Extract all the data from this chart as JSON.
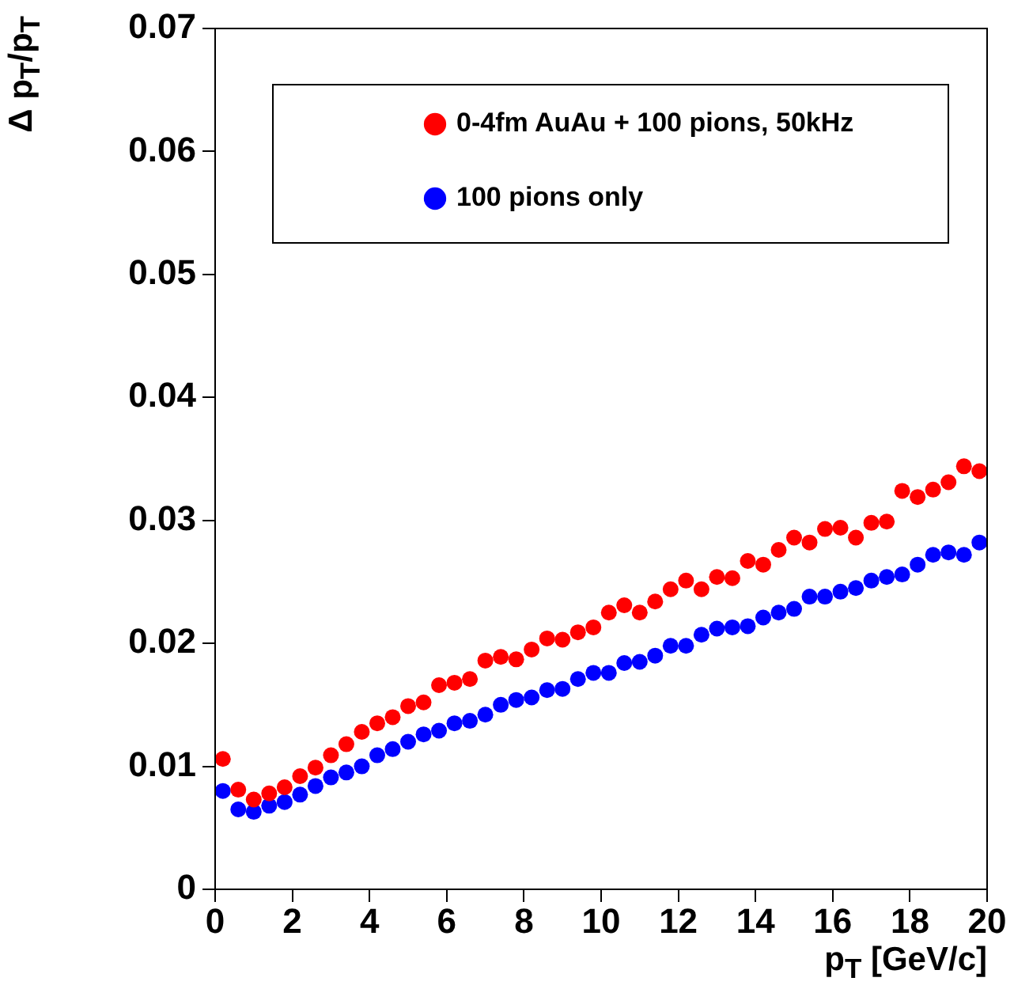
{
  "chart_data": {
    "type": "scatter",
    "xlabel": "p$_{T}$ [GeV/c]",
    "ylabel": "Δ p$_{T}$/p$_{T}$",
    "x": [
      0.2,
      0.6,
      1.0,
      1.4,
      1.8,
      2.2,
      2.6,
      3.0,
      3.4,
      3.8,
      4.2,
      4.6,
      5.0,
      5.4,
      5.8,
      6.2,
      6.6,
      7.0,
      7.4,
      7.8,
      8.2,
      8.6,
      9.0,
      9.4,
      9.8,
      10.2,
      10.6,
      11.0,
      11.4,
      11.8,
      12.2,
      12.6,
      13.0,
      13.4,
      13.8,
      14.2,
      14.6,
      15.0,
      15.4,
      15.8,
      16.2,
      16.6,
      17.0,
      17.4,
      17.8,
      18.2,
      18.6,
      19.0,
      19.4,
      19.8
    ],
    "series": [
      {
        "name": "0-4fm AuAu + 100 pions, 50kHz",
        "color": "#ff0000",
        "values": [
          0.0106,
          0.0081,
          0.0073,
          0.0078,
          0.0083,
          0.0092,
          0.0099,
          0.0109,
          0.0118,
          0.0128,
          0.0135,
          0.014,
          0.0149,
          0.0152,
          0.0166,
          0.0168,
          0.0171,
          0.0186,
          0.0189,
          0.0187,
          0.0195,
          0.0204,
          0.0203,
          0.0209,
          0.0213,
          0.0225,
          0.0231,
          0.0225,
          0.0234,
          0.0244,
          0.0251,
          0.0244,
          0.0254,
          0.0253,
          0.0267,
          0.0264,
          0.0276,
          0.0286,
          0.0282,
          0.0293,
          0.0294,
          0.0286,
          0.0298,
          0.0299,
          0.0324,
          0.0319,
          0.0325,
          0.0331,
          0.0344,
          0.034
        ]
      },
      {
        "name": "100 pions only",
        "color": "#0000ff",
        "values": [
          0.008,
          0.0065,
          0.0063,
          0.0068,
          0.0071,
          0.0077,
          0.0084,
          0.0091,
          0.0095,
          0.01,
          0.0109,
          0.0114,
          0.012,
          0.0126,
          0.0129,
          0.0135,
          0.0137,
          0.0142,
          0.015,
          0.0154,
          0.0156,
          0.0162,
          0.0163,
          0.0171,
          0.0176,
          0.0176,
          0.0184,
          0.0185,
          0.019,
          0.0198,
          0.0198,
          0.0207,
          0.0212,
          0.0213,
          0.0214,
          0.0221,
          0.0225,
          0.0228,
          0.0238,
          0.0238,
          0.0242,
          0.0245,
          0.0251,
          0.0254,
          0.0256,
          0.0264,
          0.0272,
          0.0274,
          0.0272,
          0.0282
        ]
      }
    ],
    "xlim": [
      0,
      20
    ],
    "xticks": [
      0,
      2,
      4,
      6,
      8,
      10,
      12,
      14,
      16,
      18,
      20
    ],
    "ylim": [
      0,
      0.07
    ],
    "yticks": [
      0,
      0.01,
      0.02,
      0.03,
      0.04,
      0.05,
      0.06,
      0.07
    ],
    "marker": "circle",
    "legend": "top"
  }
}
